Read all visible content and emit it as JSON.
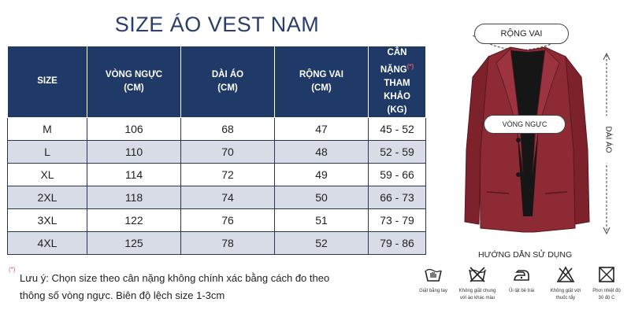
{
  "title": "SIZE ÁO VEST NAM",
  "table": {
    "headers": {
      "size": "SIZE",
      "chest_l1": "VÒNG NGỰC",
      "chest_l2": "(CM)",
      "length_l1": "DÀI ÁO",
      "length_l2": "(CM)",
      "shoulder_l1": "RỘNG VAI",
      "shoulder_l2": "(CM)",
      "weight_l1": "CÂN NẶNG",
      "weight_mark": "(*)",
      "weight_l2": "THAM KHẢO",
      "weight_l3": "(KG)"
    },
    "rows": [
      {
        "size": "M",
        "chest": "106",
        "length": "68",
        "shoulder": "47",
        "weight": "45 - 52"
      },
      {
        "size": "L",
        "chest": "110",
        "length": "70",
        "shoulder": "48",
        "weight": "52 - 59"
      },
      {
        "size": "XL",
        "chest": "114",
        "length": "72",
        "shoulder": "49",
        "weight": "59 - 66"
      },
      {
        "size": "2XL",
        "chest": "118",
        "length": "74",
        "shoulder": "50",
        "weight": "66 - 73"
      },
      {
        "size": "3XL",
        "chest": "122",
        "length": "76",
        "shoulder": "51",
        "weight": "73 - 79"
      },
      {
        "size": "4XL",
        "chest": "125",
        "length": "78",
        "shoulder": "52",
        "weight": "79 - 86"
      }
    ]
  },
  "note": {
    "mark": "(*)",
    "line1": "Lưu ý: Chọn size theo cân nặng không chính xác bằng cách đo theo",
    "line2": "thông số vòng ngực. Biên độ lệch size 1-3cm"
  },
  "diagram": {
    "shoulder_label": "RỘNG VAI",
    "chest_label": "VÒNG NGỰC",
    "length_label": "DÀI ÁO",
    "jacket_color": "#8e2a34"
  },
  "care": {
    "title": "HƯỚNG DẪN SỬ DỤNG",
    "icons": [
      {
        "icon": "hand-wash-icon",
        "caption_l1": "Giặt bằng tay",
        "caption_l2": ""
      },
      {
        "icon": "no-mix-wash-icon",
        "caption_l1": "Không giặt chung",
        "caption_l2": "với áo khác màu"
      },
      {
        "icon": "iron-low-icon",
        "caption_l1": "Ủi lật bề trái",
        "caption_l2": ""
      },
      {
        "icon": "no-bleach-icon",
        "caption_l1": "Không giặt với",
        "caption_l2": "thuốc tẩy"
      },
      {
        "icon": "dry-icon",
        "caption_l1": "Phơi nhiệt độ",
        "caption_l2": "30 độ C"
      }
    ]
  },
  "colors": {
    "header_bg": "#1f3a66",
    "alt_row": "#d7dce6",
    "title": "#2a3d6b",
    "accent": "#e05a6a"
  }
}
